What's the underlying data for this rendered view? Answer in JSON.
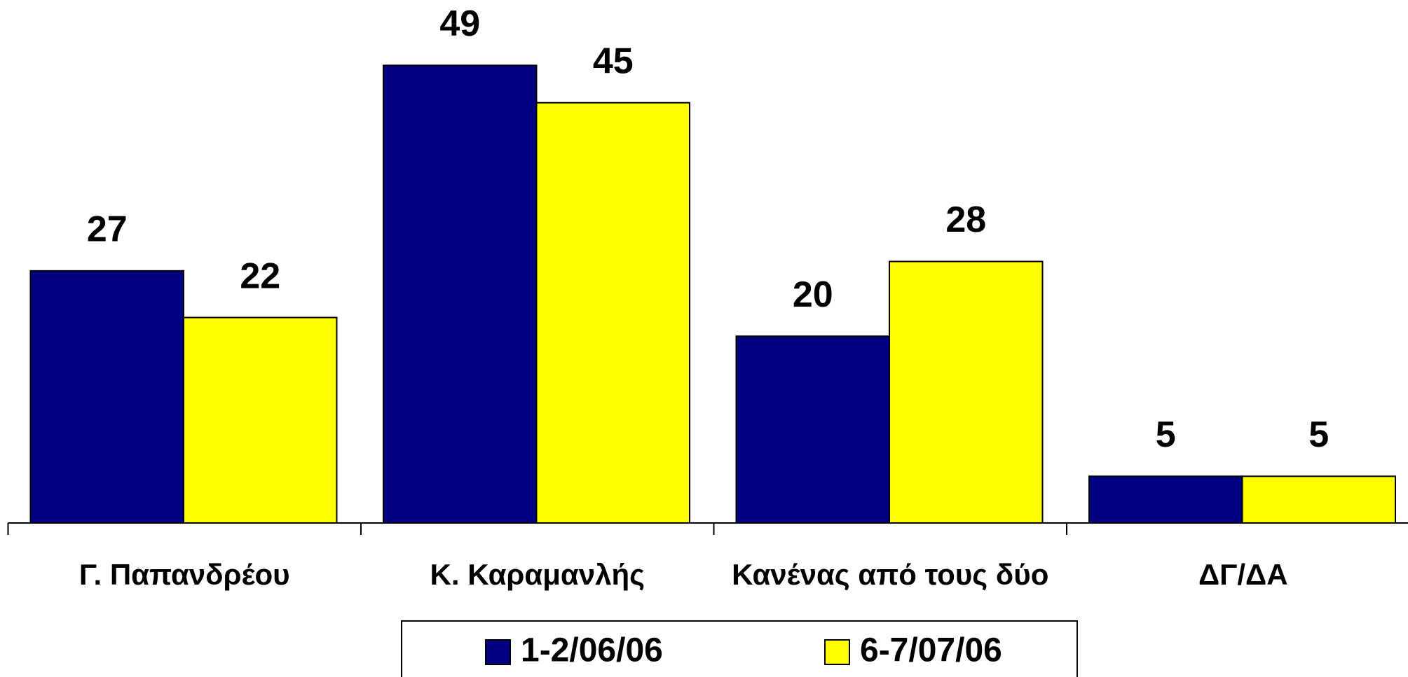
{
  "chart_data": {
    "type": "bar",
    "categories": [
      "Γ. Παπανδρέου",
      "Κ. Καραμανλής",
      "Κανένας από τους δύο",
      "ΔΓ/ΔΑ"
    ],
    "series": [
      {
        "name": "1-2/06/06",
        "color": "#000080",
        "values": [
          27,
          49,
          20,
          5
        ]
      },
      {
        "name": "6-7/07/06",
        "color": "#ffff00",
        "values": [
          22,
          45,
          28,
          5
        ]
      }
    ],
    "ylim": [
      0,
      56
    ]
  }
}
